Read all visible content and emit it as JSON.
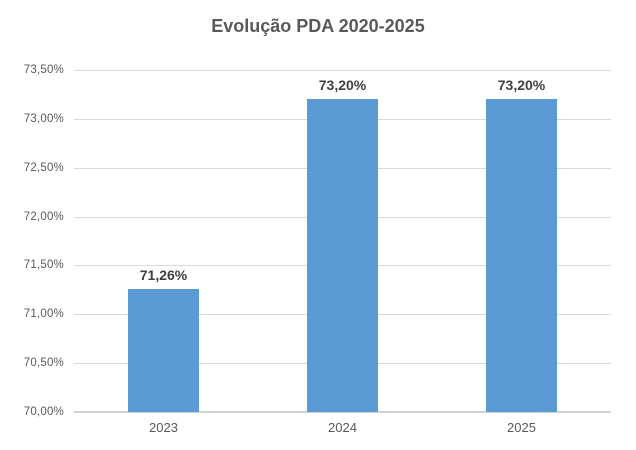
{
  "chart_data": {
    "type": "bar",
    "title": "Evolução PDA 2020-2025",
    "categories": [
      "2023",
      "2024",
      "2025"
    ],
    "values": [
      71.26,
      73.2,
      73.2
    ],
    "value_labels": [
      "71,26%",
      "73,20%",
      "73,20%"
    ],
    "xlabel": "",
    "ylabel": "",
    "ylim": [
      70.0,
      73.5
    ],
    "yticks": [
      {
        "value": 70.0,
        "label": "70,00%"
      },
      {
        "value": 70.5,
        "label": "70,50%"
      },
      {
        "value": 71.0,
        "label": "71,00%"
      },
      {
        "value": 71.5,
        "label": "71,50%"
      },
      {
        "value": 72.0,
        "label": "72,00%"
      },
      {
        "value": 72.5,
        "label": "72,50%"
      },
      {
        "value": 73.0,
        "label": "73,00%"
      },
      {
        "value": 73.5,
        "label": "73,50%"
      }
    ],
    "grid": true,
    "legend": false,
    "colors": {
      "bar": "#5B9BD5",
      "gridline": "#D9D9D9",
      "axis_line": "#D2D2D2",
      "title_text": "#595959",
      "tick_text": "#595959",
      "value_label_text": "#3F3F3F"
    }
  }
}
